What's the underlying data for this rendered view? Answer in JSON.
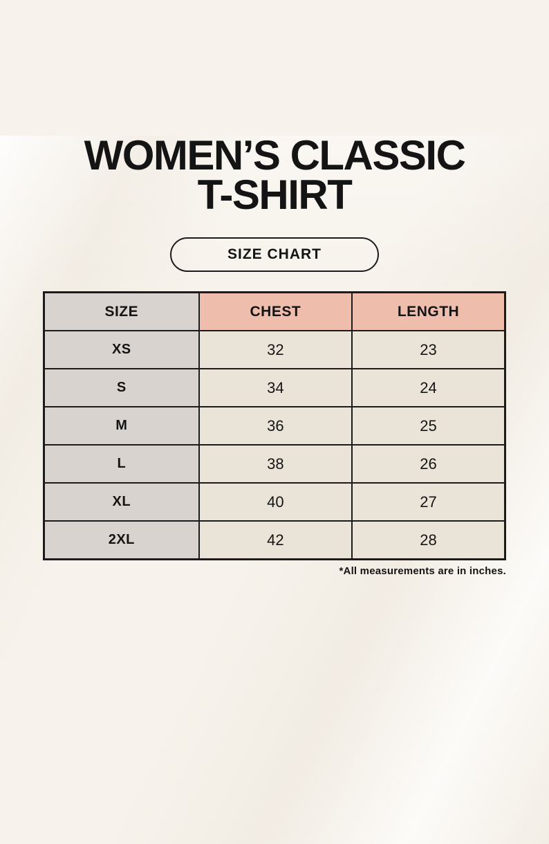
{
  "header": {
    "title_line1": "WOMEN’S CLASSIC",
    "title_line2": "T-SHIRT",
    "badge_label": "SIZE CHART"
  },
  "chart_data": {
    "type": "table",
    "title": "WOMEN’S CLASSIC T-SHIRT",
    "columns": [
      "SIZE",
      "CHEST",
      "LENGTH"
    ],
    "rows": [
      {
        "size": "XS",
        "chest": 32,
        "length": 23
      },
      {
        "size": "S",
        "chest": 34,
        "length": 24
      },
      {
        "size": "M",
        "chest": 36,
        "length": 25
      },
      {
        "size": "L",
        "chest": 38,
        "length": 26
      },
      {
        "size": "XL",
        "chest": 40,
        "length": 27
      },
      {
        "size": "2XL",
        "chest": 42,
        "length": 28
      }
    ],
    "units_note": "*All measurements are in inches.",
    "units": "inches"
  },
  "colors": {
    "background": "#f7f3ec",
    "table_gray": "#d9d3cf",
    "table_pink": "#eebdac",
    "table_cream": "#eae4d8",
    "border": "#1b1b1b",
    "text": "#141414"
  }
}
